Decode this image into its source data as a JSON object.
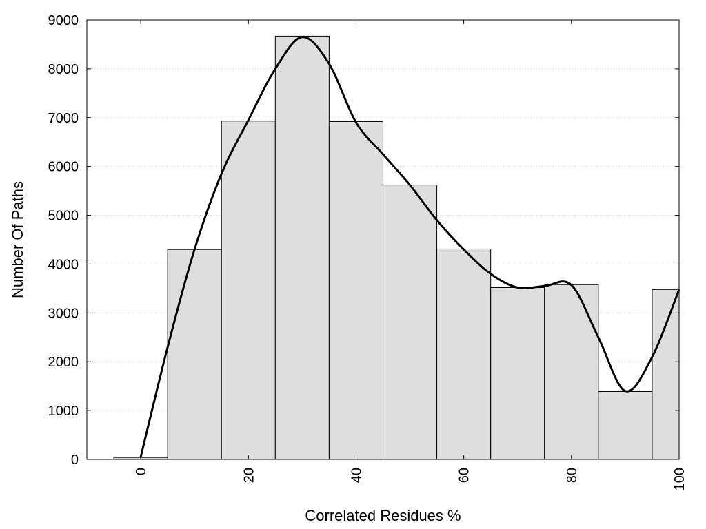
{
  "chart_data": {
    "type": "bar",
    "title": "",
    "xlabel": "Correlated Residues %",
    "ylabel": "Number Of Paths",
    "xlim": [
      -10,
      100
    ],
    "ylim": [
      0,
      9000
    ],
    "x_ticks": [
      "0",
      "20",
      "40",
      "60",
      "80",
      "100"
    ],
    "x_tick_values": [
      0,
      20,
      40,
      60,
      80,
      100
    ],
    "y_ticks": [
      "0",
      "1000",
      "2000",
      "3000",
      "4000",
      "5000",
      "6000",
      "7000",
      "8000",
      "9000"
    ],
    "y_tick_values": [
      0,
      1000,
      2000,
      3000,
      4000,
      5000,
      6000,
      7000,
      8000,
      9000
    ],
    "bin_width": 10,
    "bins": [
      {
        "center": 0,
        "value": 40
      },
      {
        "center": 10,
        "value": 4300
      },
      {
        "center": 20,
        "value": 6930
      },
      {
        "center": 30,
        "value": 8670
      },
      {
        "center": 40,
        "value": 6920
      },
      {
        "center": 50,
        "value": 5620
      },
      {
        "center": 60,
        "value": 4310
      },
      {
        "center": 70,
        "value": 3520
      },
      {
        "center": 80,
        "value": 3580
      },
      {
        "center": 90,
        "value": 1390
      },
      {
        "center": 100,
        "value": 3480
      }
    ],
    "curve": {
      "type": "line",
      "x": [
        0,
        5,
        10,
        15,
        20,
        25,
        30,
        35,
        40,
        45,
        50,
        55,
        60,
        65,
        70,
        75,
        80,
        85,
        90,
        95,
        100
      ],
      "y": [
        50,
        2300,
        4300,
        5850,
        6950,
        8000,
        8650,
        8100,
        6900,
        6250,
        5620,
        4900,
        4300,
        3800,
        3520,
        3550,
        3570,
        2500,
        1400,
        2100,
        3480
      ]
    },
    "grid": {
      "y": true,
      "x": false,
      "style": "dotted"
    },
    "colors": {
      "bar_fill": "#dedede",
      "bar_stroke": "#000000",
      "curve": "#000000",
      "grid": "#cccccc"
    }
  }
}
